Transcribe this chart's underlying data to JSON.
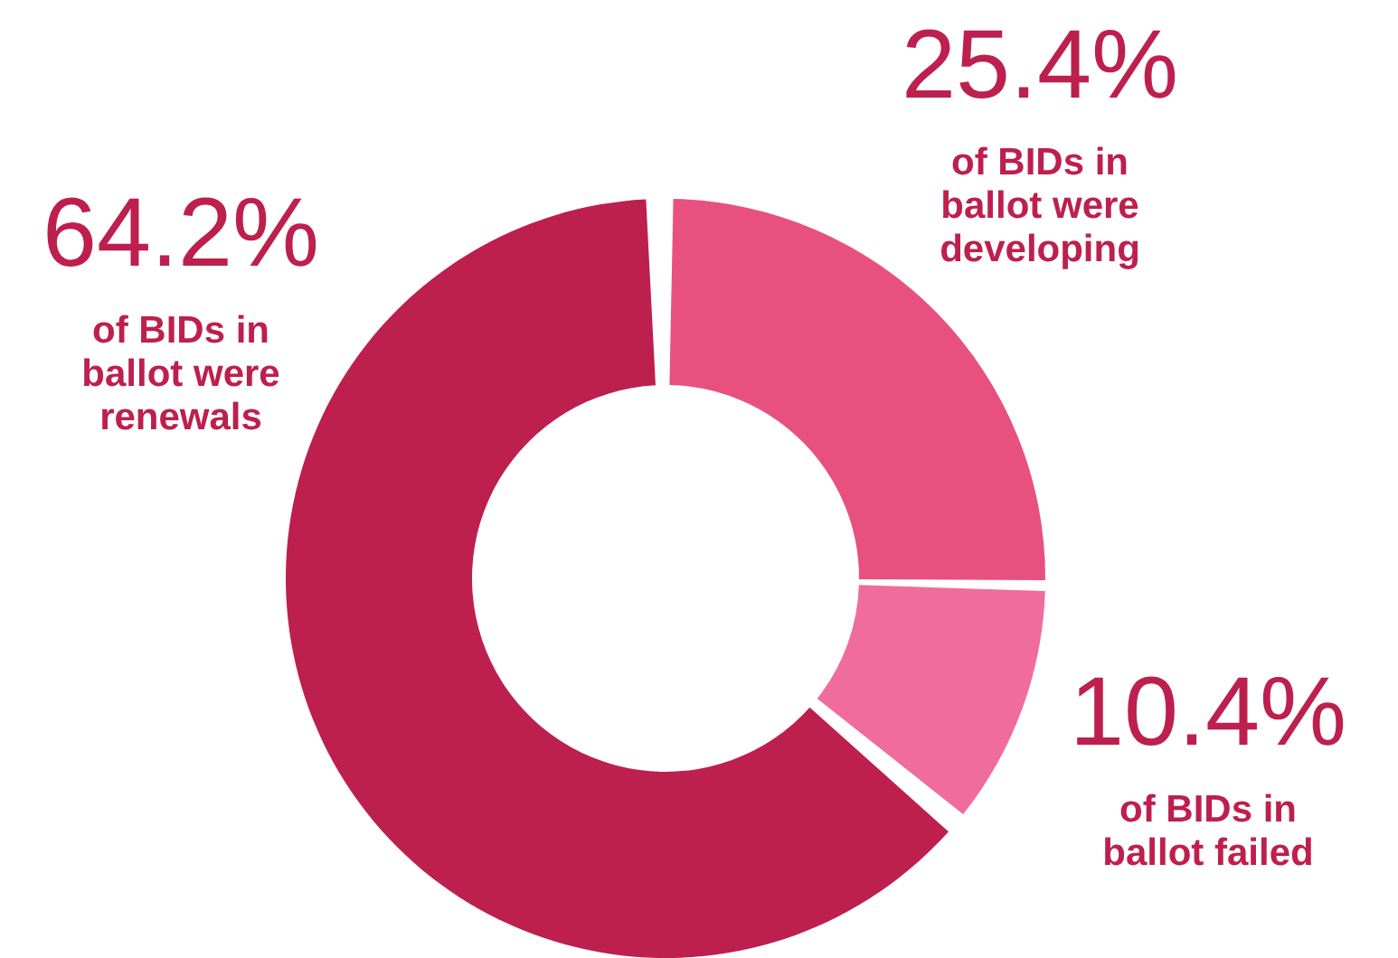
{
  "chart_data": {
    "type": "donut",
    "categories": [
      "of BIDs in ballot were developing",
      "of BIDs in ballot failed",
      "of BIDs in ballot were renewals"
    ],
    "values": [
      25.4,
      10.4,
      64.2
    ],
    "value_labels": [
      "25.4%",
      "10.4%",
      "64.2%"
    ],
    "colors": [
      "#e8517f",
      "#f06c9d",
      "#bd1f4e"
    ],
    "legend": false
  }
}
